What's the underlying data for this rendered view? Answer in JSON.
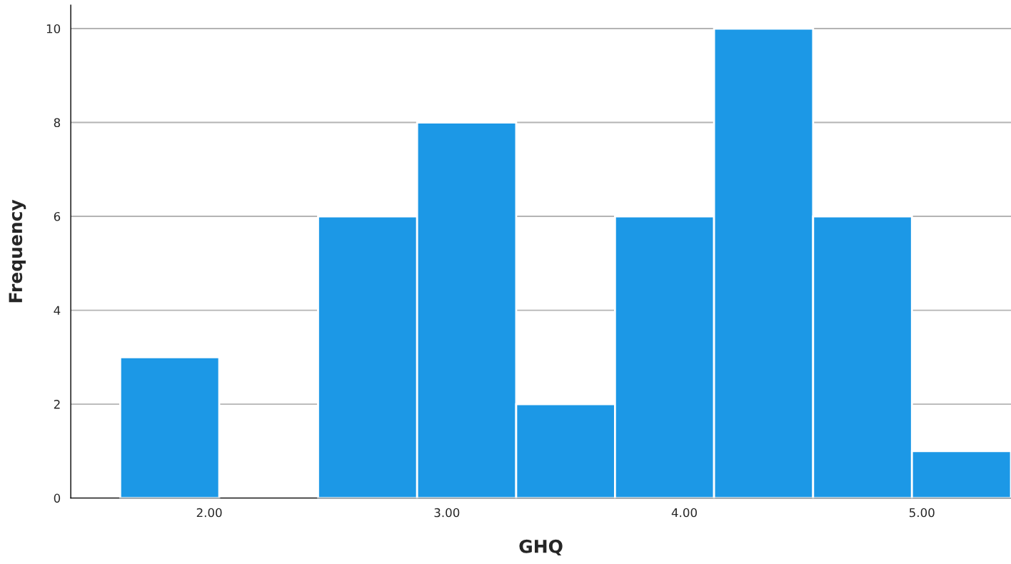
{
  "chart_data": {
    "type": "histogram",
    "xlabel": "GHQ",
    "ylabel": "Frequency",
    "color": "#1c98e6",
    "bins": [
      1.625,
      2.042,
      2.458,
      2.875,
      3.292,
      3.708,
      4.125,
      4.542,
      4.958,
      5.375
    ],
    "values": [
      3,
      0,
      6,
      8,
      2,
      6,
      10,
      6,
      1
    ],
    "xlim": [
      1.417,
      5.375
    ],
    "ylim": [
      0,
      10.5
    ],
    "xticks": [
      {
        "value": 2,
        "label": "2.00"
      },
      {
        "value": 3,
        "label": "3.00"
      },
      {
        "value": 4,
        "label": "4.00"
      },
      {
        "value": 5,
        "label": "5.00"
      }
    ],
    "yticks": [
      0,
      2,
      4,
      6,
      8,
      10
    ],
    "grid": "y"
  }
}
